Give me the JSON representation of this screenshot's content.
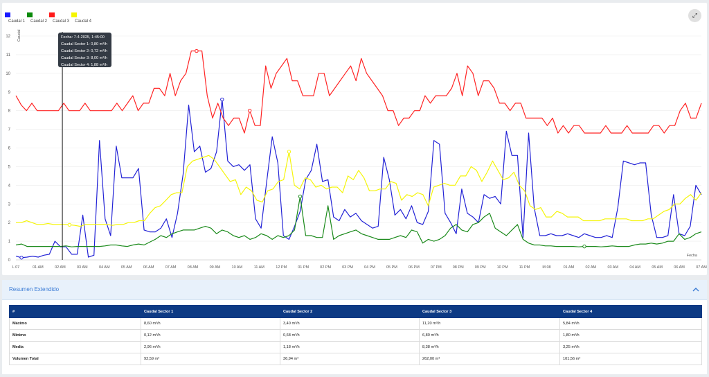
{
  "legend": [
    {
      "label": "Caudal 1",
      "color": "#1a1aff"
    },
    {
      "label": "Caudal 2",
      "color": "#0a8a0a"
    },
    {
      "label": "Caudal 3",
      "color": "#ff1a1a"
    },
    {
      "label": "Caudal 4",
      "color": "#f5f500"
    }
  ],
  "tooltip": {
    "date": "Fecha: 7-4-2025, 1:45:00",
    "lines": [
      "Caudal Sector 1: 0,80 m³/h",
      "Caudal Sector 2: 0,72 m³/h",
      "Caudal Sector 3: 8,00 m³/h",
      "Caudal Sector 4: 1,88 m³/h"
    ]
  },
  "chart_data": {
    "type": "line",
    "ylabel": "Caudal",
    "xlabel": "Fecha",
    "ylim": [
      0,
      12
    ],
    "yticks": [
      "0",
      "1",
      "2",
      "3",
      "4",
      "5",
      "6",
      "7",
      "8",
      "9",
      "10",
      "11",
      "12"
    ],
    "xticks": [
      "L 07",
      "01 AM",
      "02 AM",
      "03 AM",
      "04 AM",
      "05 AM",
      "06 AM",
      "07 AM",
      "08 AM",
      "09 AM",
      "10 AM",
      "11 AM",
      "12 PM",
      "01 PM",
      "02 PM",
      "03 PM",
      "04 PM",
      "05 PM",
      "06 PM",
      "07 PM",
      "08 PM",
      "09 PM",
      "10 PM",
      "11 PM",
      "M 08",
      "01 AM",
      "02 AM",
      "03 AM",
      "04 AM",
      "05 AM",
      "06 AM",
      "07 AM"
    ],
    "grid": true,
    "hours_span": 31,
    "series": [
      {
        "name": "Caudal 1",
        "color": "#2323d6",
        "values": [
          0.2,
          0.12,
          0.15,
          0.2,
          0.15,
          0.25,
          0.3,
          1.0,
          0.7,
          0.7,
          0.3,
          0.3,
          2.4,
          0.15,
          0.25,
          6.4,
          2.2,
          1.3,
          6.1,
          4.4,
          4.4,
          4.4,
          4.9,
          1.6,
          1.5,
          1.5,
          1.7,
          2.2,
          1.2,
          2.5,
          4.6,
          8.3,
          5.8,
          6.1,
          4.7,
          4.9,
          5.8,
          8.6,
          5.3,
          5.0,
          5.1,
          4.8,
          5.1,
          2.2,
          1.7,
          4.2,
          6.6,
          5.2,
          1.3,
          1.1,
          1.8,
          2.6,
          4.3,
          4.8,
          6.2,
          4.2,
          4.3,
          2.3,
          2.1,
          2.7,
          2.3,
          2.5,
          2.1,
          1.9,
          1.7,
          1.8,
          5.5,
          4.3,
          2.4,
          2.7,
          2.2,
          2.9,
          2.0,
          1.9,
          2.6,
          6.4,
          6.2,
          2.5,
          2.0,
          1.4,
          3.8,
          2.5,
          2.3,
          2.0,
          3.5,
          3.3,
          3.4,
          3.0,
          6.9,
          5.6,
          5.6,
          1.2,
          6.8,
          2.8,
          1.3,
          1.3,
          1.4,
          1.3,
          1.3,
          1.4,
          1.3,
          1.2,
          1.4,
          1.3,
          1.2,
          1.2,
          1.3,
          1.2,
          2.8,
          5.3,
          5.2,
          5.1,
          5.2,
          5.2,
          2.4,
          1.2,
          1.2,
          1.3,
          3.5,
          1.4,
          1.3,
          1.8,
          4.0,
          3.5
        ]
      },
      {
        "name": "Caudal 2",
        "color": "#1b8a1b",
        "values": [
          0.8,
          0.85,
          0.72,
          0.72,
          0.72,
          0.72,
          0.72,
          0.72,
          0.72,
          0.75,
          0.7,
          0.72,
          0.72,
          0.72,
          0.72,
          0.72,
          0.75,
          0.8,
          0.8,
          0.75,
          0.72,
          0.8,
          0.85,
          0.8,
          0.95,
          1.1,
          1.3,
          1.2,
          1.4,
          1.5,
          1.6,
          1.6,
          1.6,
          1.7,
          1.8,
          1.7,
          1.4,
          1.6,
          1.5,
          1.3,
          1.2,
          1.3,
          1.1,
          1.2,
          1.4,
          1.3,
          1.1,
          1.3,
          1.2,
          1.3,
          1.6,
          3.4,
          1.3,
          1.3,
          1.2,
          1.2,
          2.9,
          1.1,
          1.3,
          1.4,
          1.5,
          1.6,
          1.4,
          1.3,
          1.2,
          1.1,
          1.1,
          1.1,
          1.2,
          1.3,
          1.2,
          1.6,
          1.5,
          0.9,
          1.1,
          1.0,
          1.1,
          1.3,
          1.7,
          1.9,
          1.6,
          1.5,
          1.9,
          2.0,
          2.3,
          2.5,
          1.7,
          1.5,
          1.3,
          1.6,
          1.9,
          1.1,
          0.9,
          0.8,
          0.8,
          0.75,
          0.75,
          0.72,
          0.72,
          0.72,
          0.72,
          0.7,
          0.72,
          0.72,
          0.72,
          0.7,
          0.72,
          0.75,
          0.72,
          0.72,
          0.72,
          0.8,
          0.85,
          0.85,
          0.9,
          0.85,
          0.9,
          1.0,
          1.0,
          1.4,
          1.1,
          1.2,
          1.4,
          1.5
        ]
      },
      {
        "name": "Caudal 3",
        "color": "#ff2424",
        "values": [
          8.8,
          8.3,
          8.0,
          8.4,
          8.0,
          8.0,
          8.0,
          8.0,
          8.0,
          8.4,
          8.0,
          8.0,
          8.0,
          8.4,
          8.0,
          8.0,
          8.0,
          8.0,
          8.0,
          8.4,
          8.0,
          8.4,
          8.8,
          8.0,
          8.4,
          8.4,
          9.2,
          9.2,
          8.8,
          10.0,
          8.8,
          9.6,
          10.0,
          11.2,
          11.2,
          11.2,
          8.8,
          7.6,
          8.4,
          7.6,
          7.2,
          7.6,
          7.6,
          6.8,
          8.0,
          7.2,
          7.2,
          10.4,
          9.2,
          10.0,
          10.4,
          10.8,
          9.6,
          9.6,
          8.8,
          8.8,
          8.8,
          10.0,
          10.0,
          8.8,
          9.2,
          9.6,
          10.0,
          10.4,
          9.6,
          10.8,
          10.0,
          9.6,
          9.2,
          8.8,
          8.0,
          8.0,
          7.2,
          7.6,
          7.6,
          8.0,
          8.0,
          8.8,
          8.4,
          8.8,
          8.8,
          8.8,
          9.2,
          10.0,
          8.8,
          10.4,
          10.0,
          8.8,
          9.6,
          9.6,
          9.2,
          8.4,
          8.4,
          8.0,
          8.4,
          8.4,
          7.6,
          7.6,
          7.6,
          7.6,
          7.2,
          7.6,
          6.8,
          7.2,
          6.8,
          7.2,
          7.2,
          6.8,
          6.8,
          6.8,
          6.8,
          7.2,
          6.8,
          6.8,
          6.8,
          7.2,
          6.8,
          6.8,
          6.8,
          6.8,
          7.2,
          7.2,
          6.8,
          7.2,
          7.2,
          8.0,
          8.4,
          7.6,
          7.6,
          8.4
        ]
      },
      {
        "name": "Caudal 4",
        "color": "#f5f50a",
        "values": [
          2.0,
          2.0,
          2.1,
          2.0,
          1.9,
          1.9,
          1.95,
          1.9,
          1.9,
          1.9,
          1.88,
          1.85,
          1.8,
          1.9,
          1.9,
          1.9,
          1.9,
          1.9,
          1.85,
          1.9,
          1.9,
          2.0,
          2.0,
          2.1,
          2.1,
          2.5,
          2.8,
          2.9,
          3.2,
          3.5,
          3.6,
          3.6,
          5.0,
          5.3,
          5.4,
          5.5,
          5.6,
          5.4,
          5.0,
          4.6,
          4.2,
          4.3,
          3.5,
          3.9,
          3.7,
          3.2,
          3.1,
          3.7,
          3.8,
          4.2,
          4.3,
          5.8,
          4.0,
          3.8,
          4.4,
          4.3,
          3.9,
          4.0,
          3.8,
          3.9,
          3.9,
          3.6,
          4.5,
          4.3,
          4.8,
          4.4,
          3.7,
          3.7,
          3.8,
          3.8,
          4.2,
          4.1,
          3.2,
          3.5,
          3.4,
          3.6,
          3.5,
          2.9,
          3.9,
          4.0,
          4.1,
          4.0,
          4.0,
          4.5,
          4.5,
          5.0,
          4.8,
          4.2,
          4.7,
          5.3,
          4.8,
          4.3,
          4.4,
          4.7,
          4.0,
          3.7,
          2.9,
          2.7,
          2.8,
          2.3,
          2.3,
          2.6,
          2.5,
          2.3,
          2.3,
          2.3,
          2.1,
          2.1,
          2.1,
          2.1,
          2.2,
          2.2,
          2.2,
          2.2,
          2.2,
          2.1,
          2.1,
          2.1,
          2.2,
          2.2,
          2.4,
          2.6,
          2.7,
          3.0,
          3.0,
          3.3,
          3.5,
          3.2,
          3.6
        ]
      }
    ],
    "markers": [
      {
        "series": 0,
        "index": 1
      },
      {
        "series": 0,
        "index": 37
      },
      {
        "series": 1,
        "index": 51
      },
      {
        "series": 1,
        "index": 102
      },
      {
        "series": 2,
        "index": 34
      },
      {
        "series": 2,
        "index": 44
      },
      {
        "series": 3,
        "index": 10
      },
      {
        "series": 3,
        "index": 51
      }
    ],
    "cursor_hours": 2.1
  },
  "summary": {
    "title": "Resumen Extendido",
    "columns": [
      "#",
      "Caudal Sector 1",
      "Caudal Sector 2",
      "Caudal Sector 3",
      "Caudal Sector 4"
    ],
    "rows": [
      {
        "label": "Máximo",
        "cells": [
          "8,60 m³/h",
          "3,40 m³/h",
          "11,20 m³/h",
          "5,84 m³/h"
        ]
      },
      {
        "label": "Mínimo",
        "cells": [
          "0,12 m³/h",
          "0,68 m³/h",
          "6,80 m³/h",
          "1,80 m³/h"
        ]
      },
      {
        "label": "Media",
        "cells": [
          "2,96 m³/h",
          "1,18 m³/h",
          "8,38 m³/h",
          "3,25 m³/h"
        ]
      },
      {
        "label": "Volumen Total",
        "cells": [
          "92,59 m³",
          "36,94 m³",
          "262,00 m³",
          "101,56 m³"
        ]
      }
    ]
  }
}
